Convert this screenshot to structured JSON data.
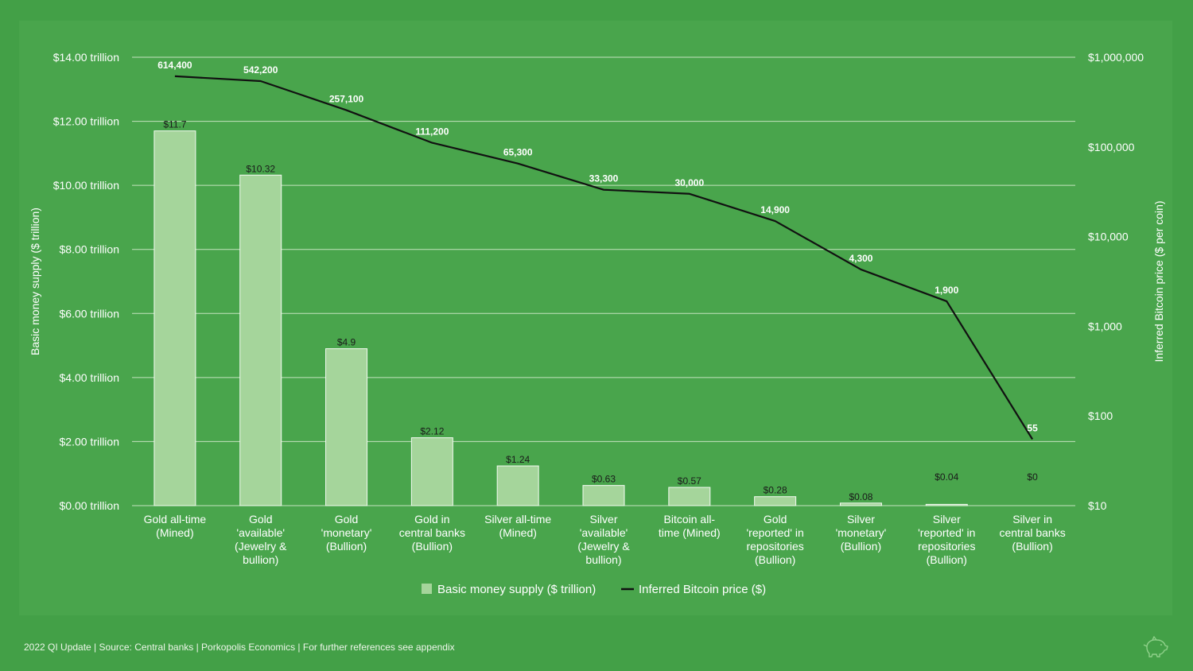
{
  "chart_data": {
    "type": "bar",
    "categories": [
      [
        "Gold all-time",
        "(Mined)"
      ],
      [
        "Gold",
        "'available'",
        "(Jewelry &",
        "bullion)"
      ],
      [
        "Gold",
        "'monetary'",
        "(Bullion)"
      ],
      [
        "Gold in",
        "central banks",
        "(Bullion)"
      ],
      [
        "Silver all-time",
        "(Mined)"
      ],
      [
        "Silver",
        "'available'",
        "(Jewelry &",
        "bullion)"
      ],
      [
        "Bitcoin all-",
        "time (Mined)"
      ],
      [
        "Gold",
        "'reported' in",
        "repositories",
        "(Bullion)"
      ],
      [
        "Silver",
        "'monetary'",
        "(Bullion)"
      ],
      [
        "Silver",
        "'reported' in",
        "repositories",
        "(Bullion)"
      ],
      [
        "Silver in",
        "central banks",
        "(Bullion)"
      ]
    ],
    "series": [
      {
        "name": "Basic money supply ($ trillion)",
        "type": "bar",
        "axis": "left",
        "color": "#a5d59b",
        "values": [
          11.7,
          10.32,
          4.9,
          2.12,
          1.24,
          0.63,
          0.57,
          0.28,
          0.08,
          0.04,
          0
        ],
        "labels": [
          "$11.7",
          "$10.32",
          "$4.9",
          "$2.12",
          "$1.24",
          "$0.63",
          "$0.57",
          "$0.28",
          "$0.08",
          "$0.04",
          "$0"
        ]
      },
      {
        "name": "Inferred Bitcoin price ($)",
        "type": "line",
        "axis": "right",
        "scale": "log",
        "color": "#111111",
        "values": [
          614400,
          542200,
          257100,
          111200,
          65300,
          33300,
          30000,
          14900,
          4300,
          1900,
          55
        ],
        "labels": [
          "614,400",
          "542,200",
          "257,100",
          "111,200",
          "65,300",
          "33,300",
          "30,000",
          "14,900",
          "4,300",
          "1,900",
          "55"
        ]
      }
    ],
    "y_left": {
      "label": "Basic money supply ($ trillion)",
      "ylim": [
        0,
        14
      ],
      "ticks": [
        0,
        2,
        4,
        6,
        8,
        10,
        12,
        14
      ],
      "tick_labels": [
        "$0.00 trillion",
        "$2.00 trillion",
        "$4.00 trillion",
        "$6.00 trillion",
        "$8.00 trillion",
        "$10.00 trillion",
        "$12.00 trillion",
        "$14.00 trillion"
      ]
    },
    "y_right": {
      "label": "Inferred Bitcoin price ($ per coin)",
      "scale": "log",
      "ylim": [
        10,
        1000000
      ],
      "ticks": [
        10,
        100,
        1000,
        10000,
        100000,
        1000000
      ],
      "tick_labels": [
        "$10",
        "$100",
        "$1,000",
        "$10,000",
        "$100,000",
        "$1,000,000"
      ]
    },
    "grid": true,
    "legend": "bottom-center"
  },
  "colors": {
    "background": "#43a047",
    "panel": "#49a54c",
    "bar": "#a5d59b",
    "line": "#111111",
    "gridline": "#c5e3bf",
    "text": "#ffffff"
  },
  "footer": "2022 QI Update | Source: Central banks | Porkopolis Economics | For further references see appendix",
  "logo_icon": "pig-icon"
}
